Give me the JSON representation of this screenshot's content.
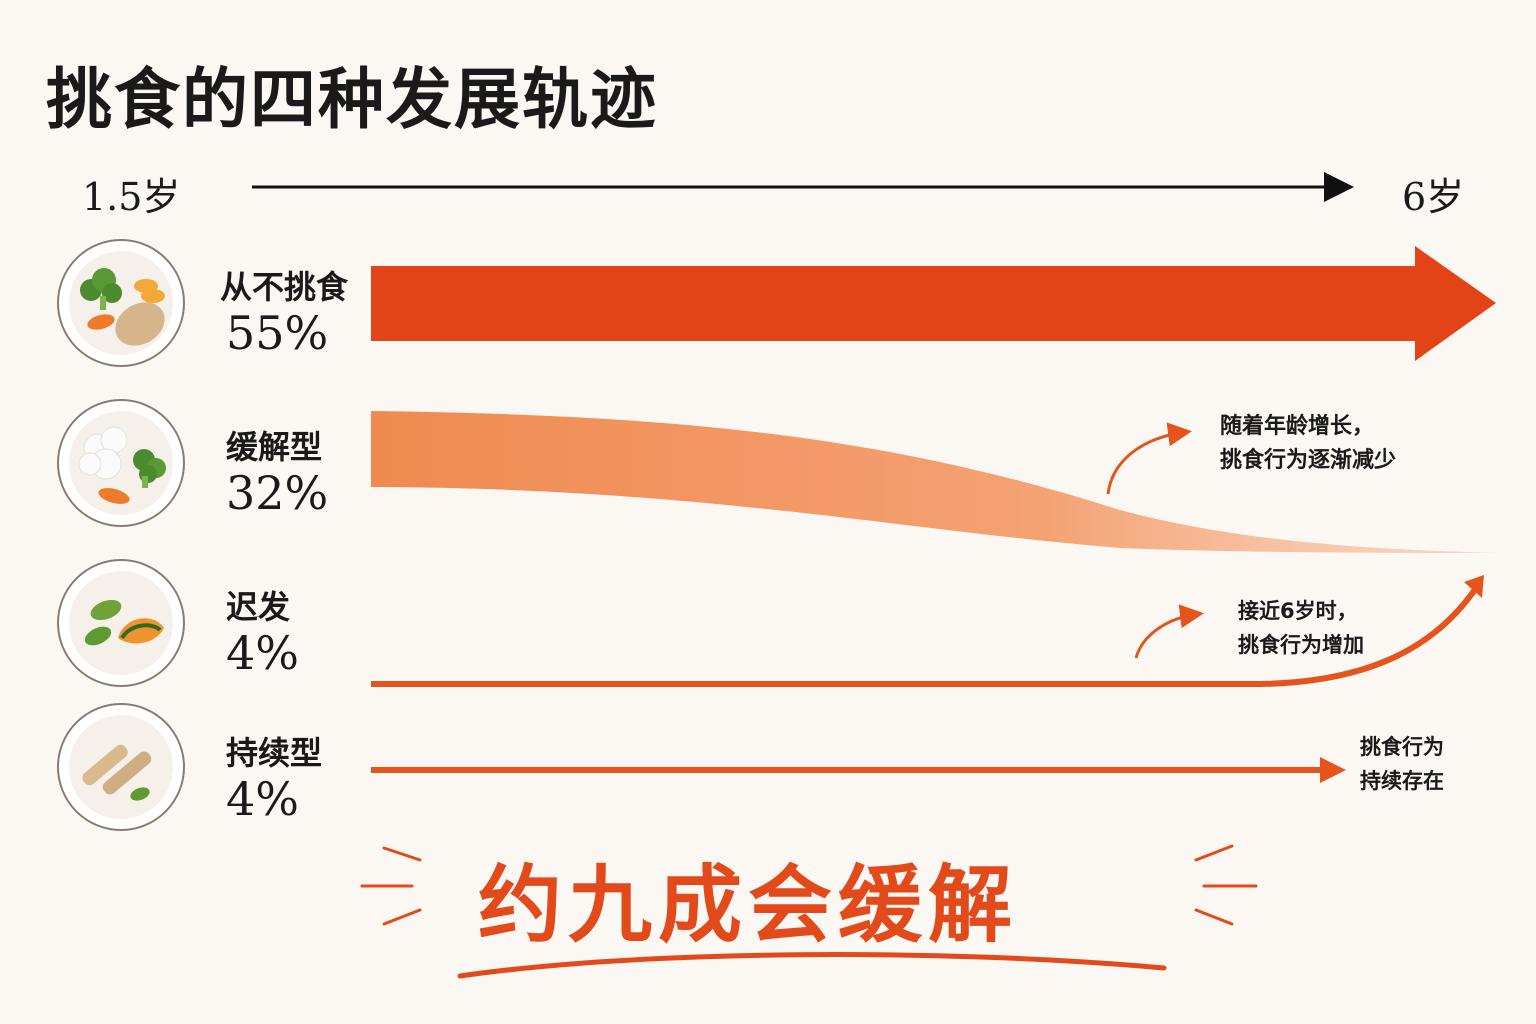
{
  "title": "挑食的四种发展轨迹",
  "timeline": {
    "start_label": "1.5岁",
    "end_label": "6岁"
  },
  "rows": [
    {
      "label": "从不挑食",
      "percent": "55%",
      "plate_icon": "plate-broccoli-carrot-potato-icon",
      "color": "#e24418"
    },
    {
      "label": "缓解型",
      "percent": "32%",
      "plate_icon": "plate-rice-broccoli-carrot-icon",
      "color": "#f08a50"
    },
    {
      "label": "迟发",
      "percent": "4%",
      "plate_icon": "plate-peas-pumpkin-icon",
      "color": "#e6541e"
    },
    {
      "label": "持续型",
      "percent": "4%",
      "plate_icon": "plate-breadsticks-peas-icon",
      "color": "#e6541e"
    }
  ],
  "notes": {
    "remission": [
      "随着年龄增长，",
      "挑食行为逐渐减少"
    ],
    "late_onset": [
      "接近6岁时，",
      "挑食行为增加"
    ],
    "persistent": [
      "挑食行为",
      "持续存在"
    ]
  },
  "slogan": "约九成会缓解",
  "accent_color": "#e24a1c"
}
